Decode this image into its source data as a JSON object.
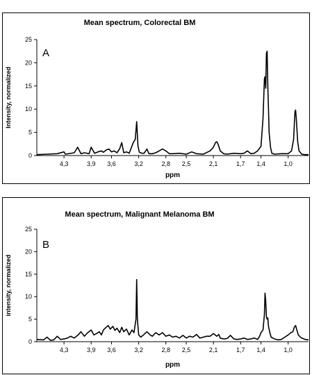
{
  "chart_data": [
    {
      "type": "line",
      "title": "Mean spectrum, Colorectal BM",
      "panel_letter": "A",
      "xlabel": "ppm",
      "ylabel": "Intensity, normalized",
      "x_reversed": true,
      "xlim": [
        4.7,
        0.7
      ],
      "ylim": [
        0,
        25
      ],
      "yticks": [
        "0",
        "5",
        "10",
        "15",
        "20",
        "25"
      ],
      "xticks": [
        "4,3",
        "3,9",
        "3,6",
        "3,2",
        "2,8",
        "2,5",
        "2,1",
        "1,7",
        "1,4",
        "1,0"
      ],
      "grid": false,
      "series": [
        {
          "x": [
            4.7,
            4.55,
            4.4,
            4.3,
            4.28,
            4.15,
            4.1,
            4.05,
            4.0,
            3.93,
            3.9,
            3.85,
            3.8,
            3.75,
            3.72,
            3.68,
            3.64,
            3.6,
            3.56,
            3.52,
            3.48,
            3.45,
            3.42,
            3.38,
            3.34,
            3.28,
            3.25,
            3.23,
            3.21,
            3.19,
            3.15,
            3.12,
            3.08,
            3.05,
            3.03,
            3.0,
            2.95,
            2.9,
            2.85,
            2.8,
            2.75,
            2.7,
            2.6,
            2.5,
            2.42,
            2.35,
            2.25,
            2.15,
            2.1,
            2.07,
            2.05,
            2.03,
            2.0,
            1.95,
            1.9,
            1.8,
            1.7,
            1.65,
            1.6,
            1.55,
            1.5,
            1.45,
            1.4,
            1.37,
            1.35,
            1.34,
            1.33,
            1.32,
            1.31,
            1.3,
            1.29,
            1.28,
            1.26,
            1.24,
            1.2,
            1.1,
            1.0,
            0.95,
            0.92,
            0.9,
            0.89,
            0.88,
            0.86,
            0.84,
            0.8,
            0.75,
            0.7
          ],
          "y": [
            0.2,
            0.3,
            0.4,
            0.8,
            0.3,
            0.6,
            1.8,
            0.4,
            0.6,
            0.4,
            1.8,
            0.5,
            0.8,
            1.0,
            0.7,
            1.2,
            1.4,
            0.8,
            1.0,
            0.6,
            1.5,
            2.8,
            0.6,
            0.8,
            0.5,
            2.8,
            3.5,
            7.3,
            2.0,
            0.7,
            0.5,
            0.5,
            1.4,
            0.4,
            0.4,
            0.4,
            0.6,
            1.0,
            1.4,
            1.0,
            0.4,
            0.4,
            0.5,
            0.3,
            0.8,
            0.4,
            0.3,
            1.0,
            1.8,
            2.8,
            3.0,
            2.4,
            1.0,
            0.4,
            0.3,
            0.5,
            0.4,
            0.5,
            1.0,
            0.4,
            0.5,
            1.0,
            2.0,
            8.0,
            16.5,
            17.0,
            14.5,
            22.0,
            22.5,
            15.0,
            10.5,
            5.0,
            1.8,
            0.5,
            0.3,
            0.4,
            0.4,
            1.0,
            3.5,
            9.5,
            9.8,
            8.0,
            3.0,
            1.0,
            0.3,
            0.2,
            0.2
          ]
        }
      ]
    },
    {
      "type": "line",
      "title": "Mean spectrum, Malignant Melanoma BM",
      "panel_letter": "B",
      "xlabel": "ppm",
      "ylabel": "intensity, normalized",
      "x_reversed": true,
      "xlim": [
        4.7,
        0.7
      ],
      "ylim": [
        0,
        25
      ],
      "yticks": [
        "0",
        "5",
        "10",
        "15",
        "20",
        "25"
      ],
      "xticks": [
        "4,3",
        "3,9",
        "3,6",
        "3,2",
        "2,8",
        "2,5",
        "2,1",
        "1,7",
        "1,4",
        "1,0"
      ],
      "grid": false,
      "series": [
        {
          "x": [
            4.7,
            4.6,
            4.55,
            4.5,
            4.45,
            4.4,
            4.35,
            4.3,
            4.25,
            4.2,
            4.15,
            4.1,
            4.05,
            4.0,
            3.95,
            3.9,
            3.86,
            3.82,
            3.78,
            3.75,
            3.72,
            3.68,
            3.65,
            3.62,
            3.58,
            3.55,
            3.52,
            3.48,
            3.45,
            3.42,
            3.38,
            3.34,
            3.3,
            3.27,
            3.24,
            3.23,
            3.22,
            3.2,
            3.17,
            3.13,
            3.08,
            3.03,
            3.0,
            2.95,
            2.9,
            2.85,
            2.8,
            2.75,
            2.7,
            2.65,
            2.6,
            2.55,
            2.5,
            2.45,
            2.4,
            2.35,
            2.3,
            2.25,
            2.2,
            2.15,
            2.1,
            2.05,
            2.02,
            2.0,
            1.95,
            1.9,
            1.85,
            1.8,
            1.75,
            1.7,
            1.65,
            1.6,
            1.55,
            1.5,
            1.45,
            1.42,
            1.4,
            1.37,
            1.35,
            1.34,
            1.33,
            1.32,
            1.31,
            1.3,
            1.29,
            1.27,
            1.25,
            1.2,
            1.15,
            1.1,
            1.05,
            1.0,
            0.96,
            0.93,
            0.91,
            0.89,
            0.87,
            0.85,
            0.82,
            0.8,
            0.75,
            0.7
          ],
          "y": [
            0.5,
            0.4,
            1.0,
            0.3,
            0.4,
            1.2,
            0.5,
            0.6,
            0.8,
            1.2,
            0.8,
            1.4,
            2.2,
            1.2,
            2.0,
            2.6,
            1.5,
            1.8,
            2.2,
            1.5,
            2.6,
            3.2,
            3.6,
            2.8,
            3.4,
            2.5,
            3.0,
            2.0,
            3.2,
            2.2,
            2.8,
            1.5,
            2.6,
            2.0,
            5.0,
            13.8,
            5.0,
            1.5,
            1.0,
            1.5,
            2.2,
            1.5,
            1.2,
            2.0,
            1.5,
            2.0,
            1.2,
            1.5,
            1.0,
            1.2,
            0.8,
            1.4,
            0.8,
            1.2,
            1.0,
            1.6,
            0.8,
            1.0,
            1.2,
            1.2,
            1.8,
            1.2,
            1.6,
            0.8,
            0.6,
            0.7,
            1.4,
            0.6,
            0.5,
            0.6,
            0.8,
            0.5,
            0.6,
            0.8,
            0.5,
            1.2,
            2.0,
            2.6,
            6.0,
            10.8,
            9.0,
            5.5,
            5.0,
            5.3,
            3.5,
            2.0,
            1.0,
            0.6,
            0.4,
            0.5,
            1.0,
            1.5,
            2.0,
            2.2,
            3.2,
            3.6,
            2.5,
            1.5,
            1.0,
            0.8,
            0.5,
            0.4
          ]
        }
      ]
    }
  ]
}
